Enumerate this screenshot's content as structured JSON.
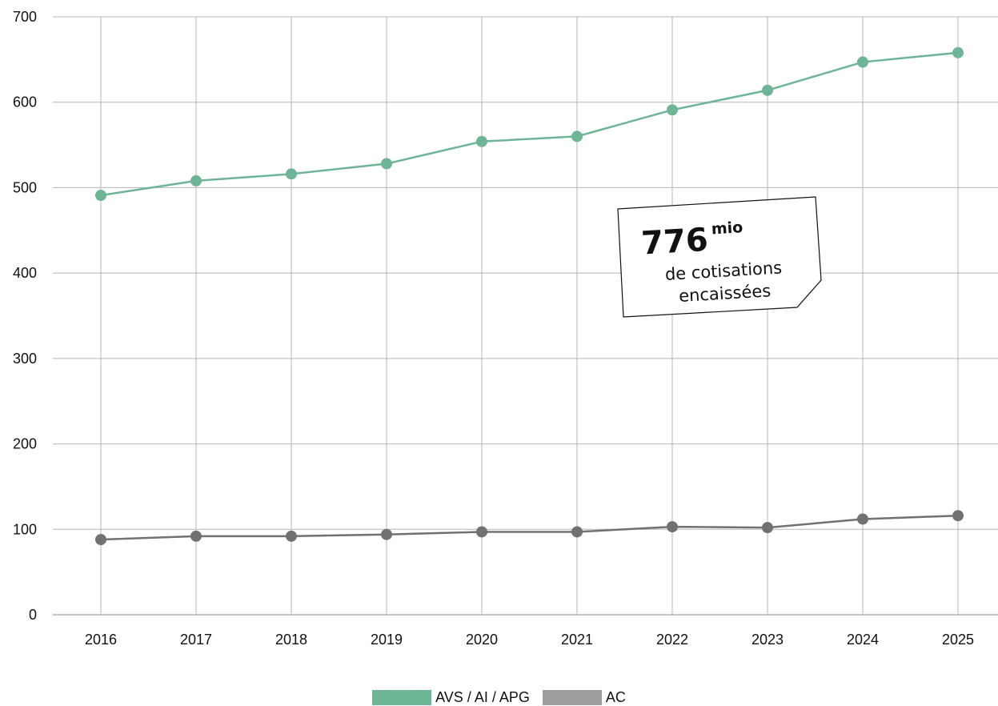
{
  "chart_data": {
    "type": "line",
    "title": "",
    "xlabel": "",
    "ylabel": "",
    "categories": [
      "2016",
      "2017",
      "2018",
      "2019",
      "2020",
      "2021",
      "2022",
      "2023",
      "2024",
      "2025"
    ],
    "ylim": [
      0,
      700
    ],
    "yticks": [
      0,
      100,
      200,
      300,
      400,
      500,
      600,
      700
    ],
    "grid": true,
    "legend_position": "bottom-center",
    "series": [
      {
        "name": "AVS / AI / APG",
        "color": "#6db594",
        "values": [
          491,
          508,
          516,
          528,
          554,
          560,
          591,
          614,
          647,
          658
        ]
      },
      {
        "name": "AC",
        "color": "#717171",
        "values": [
          88,
          92,
          92,
          94,
          97,
          97,
          103,
          102,
          112,
          116
        ]
      }
    ],
    "annotation": {
      "number": "776",
      "unit": "mio",
      "line1": "de cotisations",
      "line2": "encaissées"
    }
  },
  "legend": {
    "swatch_colors": [
      "#6db594",
      "#9e9e9e"
    ]
  }
}
